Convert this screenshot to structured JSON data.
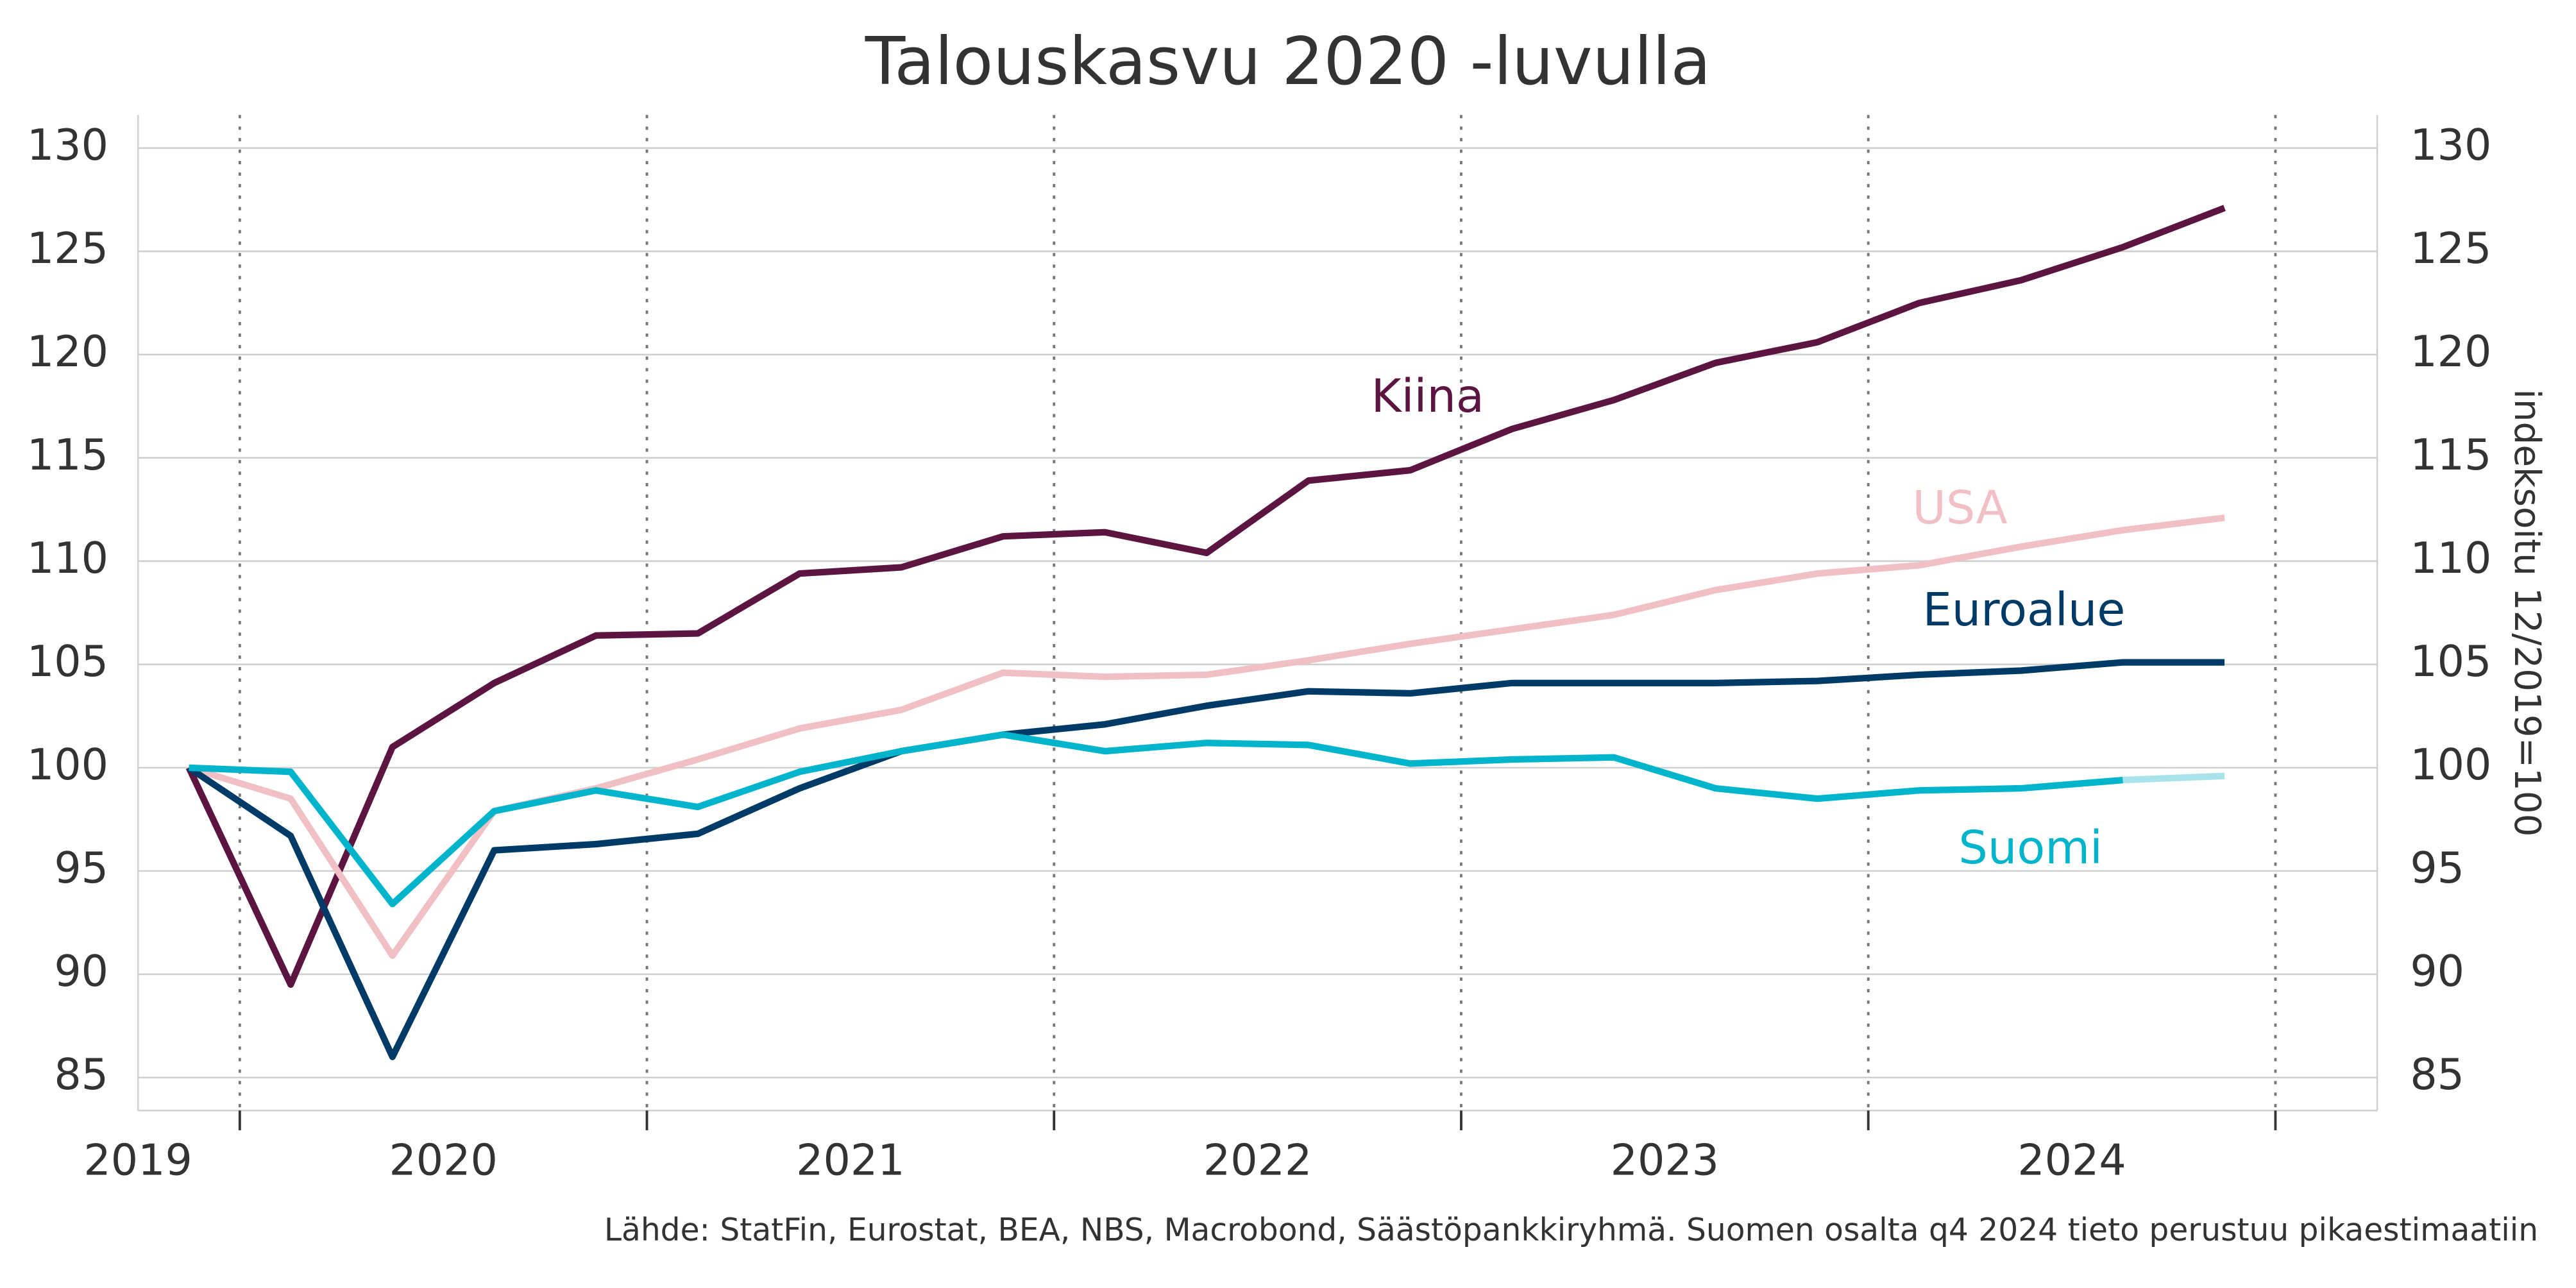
{
  "chart_data": {
    "type": "line",
    "title": "Talouskasvu 2020 -luvulla",
    "y2_label": "indeksoitu 12/2019=100",
    "source": "Lähde: StatFin, Eurostat, BEA, NBS, Macrobond, Säästöpankkiryhmä. Suomen osalta q4 2024 tieto perustuu pikaestimaatiin",
    "x": [
      2019.875,
      2020.125,
      2020.375,
      2020.625,
      2020.875,
      2021.125,
      2021.375,
      2021.625,
      2021.875,
      2022.125,
      2022.375,
      2022.625,
      2022.875,
      2023.125,
      2023.375,
      2023.625,
      2023.875,
      2024.125,
      2024.375,
      2024.625,
      2024.875
    ],
    "series": [
      {
        "name": "Kiina",
        "color": "#5c1440",
        "values": [
          100,
          89.5,
          101,
          104.1,
          106.4,
          106.5,
          109.4,
          109.7,
          111.2,
          111.4,
          110.4,
          113.9,
          114.4,
          116.4,
          117.8,
          119.6,
          120.6,
          122.5,
          123.6,
          125.2,
          127.1
        ]
      },
      {
        "name": "USA",
        "color": "#f0c0c4",
        "values": [
          100,
          98.5,
          90.9,
          97.9,
          99.0,
          100.4,
          101.9,
          102.8,
          104.6,
          104.4,
          104.5,
          105.2,
          106.0,
          106.7,
          107.4,
          108.6,
          109.4,
          109.8,
          110.7,
          111.5,
          112.1
        ]
      },
      {
        "name": "Euroalue",
        "color": "#003a66",
        "values": [
          100,
          96.7,
          86.0,
          96.0,
          96.3,
          96.8,
          99.0,
          100.8,
          101.6,
          102.1,
          103.0,
          103.7,
          103.6,
          104.1,
          104.1,
          104.1,
          104.2,
          104.5,
          104.7,
          105.1,
          105.1
        ]
      },
      {
        "name": "Suomi",
        "color": "#00b4cc",
        "estimate_color": "#a8e2ea",
        "values": [
          100,
          99.8,
          93.4,
          97.9,
          98.9,
          98.1,
          99.8,
          100.8,
          101.6,
          100.8,
          101.2,
          101.1,
          100.2,
          100.4,
          100.5,
          99.0,
          98.5,
          98.9,
          99.0,
          99.4,
          99.6
        ]
      }
    ],
    "xlim": [
      2019.75,
      2025.25
    ],
    "xticks": [
      {
        "value": 2019.5,
        "label": "2019"
      },
      {
        "value": 2020.5,
        "label": "2020"
      },
      {
        "value": 2021.5,
        "label": "2021"
      },
      {
        "value": 2022.5,
        "label": "2022"
      },
      {
        "value": 2023.5,
        "label": "2023"
      },
      {
        "value": 2024.5,
        "label": "2024"
      }
    ],
    "xgridticks": [
      2020,
      2021,
      2022,
      2023,
      2024,
      2025
    ],
    "ylim": [
      83.4,
      131.6
    ],
    "yticks": [
      85,
      90,
      95,
      100,
      105,
      110,
      115,
      120,
      125,
      130
    ],
    "y2lim": [
      83.4,
      131.6
    ],
    "y2ticks": [
      85,
      90,
      95,
      100,
      105,
      110,
      115,
      120,
      125,
      130
    ],
    "grid": true
  }
}
